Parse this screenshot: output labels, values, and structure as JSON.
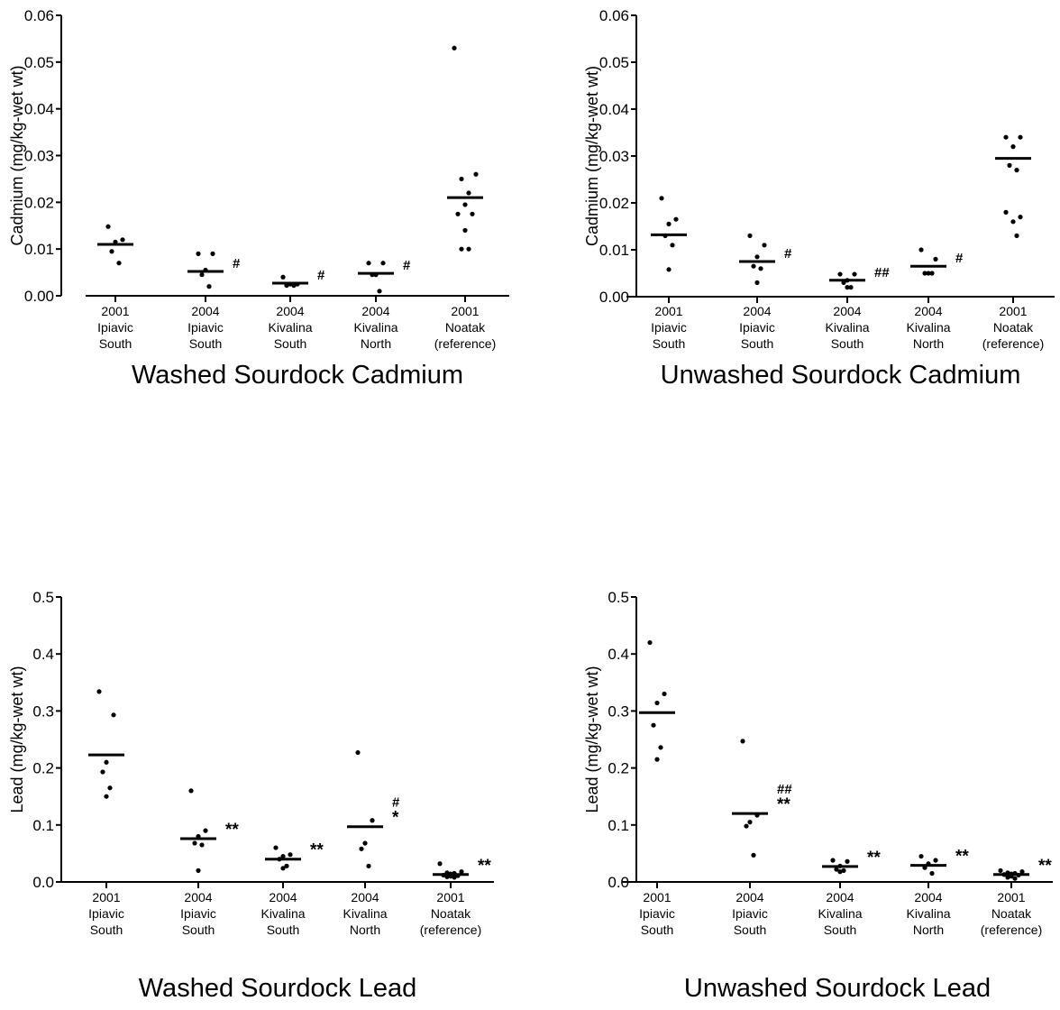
{
  "chart_data": [
    {
      "type": "scatter",
      "title": "Washed Sourdock Cadmium",
      "ylabel": "Cadmium (mg/kg-wet wt)",
      "ylim": [
        0,
        0.06
      ],
      "yticks": [
        "0.00",
        "0.01",
        "0.02",
        "0.03",
        "0.04",
        "0.05",
        "0.06"
      ],
      "categories": [
        [
          "2001",
          "Ipiavic",
          "South"
        ],
        [
          "2004",
          "Ipiavic",
          "South"
        ],
        [
          "2004",
          "Kivalina",
          "South"
        ],
        [
          "2004",
          "Kivalina",
          "North"
        ],
        [
          "2001",
          "Noatak",
          "(reference)"
        ]
      ],
      "groups": [
        {
          "mean": 0.011,
          "points": [
            0.0148,
            0.012,
            0.0115,
            0.0095,
            0.007
          ],
          "annotation": []
        },
        {
          "mean": 0.0052,
          "points": [
            0.009,
            0.009,
            0.0055,
            0.0045,
            0.002
          ],
          "annotation": [
            "#"
          ]
        },
        {
          "mean": 0.0027,
          "points": [
            0.004,
            0.0025,
            0.0025,
            0.0022,
            0.0022
          ],
          "annotation": [
            "#"
          ]
        },
        {
          "mean": 0.0048,
          "points": [
            0.007,
            0.007,
            0.0045,
            0.0045,
            0.001
          ],
          "annotation": [
            "#"
          ]
        },
        {
          "mean": 0.021,
          "points": [
            0.053,
            0.026,
            0.025,
            0.022,
            0.0195,
            0.0175,
            0.0175,
            0.014,
            0.01,
            0.01
          ],
          "annotation": []
        }
      ]
    },
    {
      "type": "scatter",
      "title": "Unwashed Sourdock Cadmium",
      "ylabel": "Cadmium (mg/kg-wet wt)",
      "ylim": [
        0,
        0.06
      ],
      "yticks": [
        "0.00",
        "0.01",
        "0.02",
        "0.03",
        "0.04",
        "0.05",
        "0.06"
      ],
      "categories": [
        [
          "2001",
          "Ipiavic",
          "South"
        ],
        [
          "2004",
          "Ipiavic",
          "South"
        ],
        [
          "2004",
          "Kivalina",
          "South"
        ],
        [
          "2004",
          "Kivalina",
          "North"
        ],
        [
          "2001",
          "Noatak",
          "(reference)"
        ]
      ],
      "groups": [
        {
          "mean": 0.0132,
          "points": [
            0.021,
            0.0165,
            0.0155,
            0.013,
            0.011,
            0.0058
          ],
          "annotation": []
        },
        {
          "mean": 0.0075,
          "points": [
            0.013,
            0.011,
            0.0085,
            0.0065,
            0.006,
            0.003
          ],
          "annotation": [
            "#"
          ]
        },
        {
          "mean": 0.0035,
          "points": [
            0.0048,
            0.0048,
            0.0035,
            0.003,
            0.002,
            0.002
          ],
          "annotation": [
            "##"
          ]
        },
        {
          "mean": 0.0065,
          "points": [
            0.01,
            0.008,
            0.005,
            0.005,
            0.005
          ],
          "annotation": [
            "#"
          ]
        },
        {
          "mean": 0.0295,
          "points": [
            0.034,
            0.034,
            0.032,
            0.028,
            0.027,
            0.018,
            0.017,
            0.016,
            0.013
          ],
          "annotation": []
        }
      ]
    },
    {
      "type": "scatter",
      "title": "Washed Sourdock Lead",
      "ylabel": "Lead (mg/kg-wet wt)",
      "ylim": [
        0,
        0.5
      ],
      "yticks": [
        "0.0",
        "0.1",
        "0.2",
        "0.3",
        "0.4",
        "0.5"
      ],
      "categories": [
        [
          "2001",
          "Ipiavic",
          "South"
        ],
        [
          "2004",
          "Ipiavic",
          "South"
        ],
        [
          "2004",
          "Kivalina",
          "South"
        ],
        [
          "2004",
          "Kivalina",
          "North"
        ],
        [
          "2001",
          "Noatak",
          "(reference)"
        ]
      ],
      "groups": [
        {
          "mean": 0.223,
          "points": [
            0.334,
            0.293,
            0.21,
            0.193,
            0.165,
            0.15
          ],
          "annotation": []
        },
        {
          "mean": 0.076,
          "points": [
            0.16,
            0.09,
            0.08,
            0.068,
            0.065,
            0.02
          ],
          "annotation": [
            "**"
          ]
        },
        {
          "mean": 0.04,
          "points": [
            0.06,
            0.048,
            0.045,
            0.04,
            0.028,
            0.024
          ],
          "annotation": [
            "**"
          ]
        },
        {
          "mean": 0.097,
          "points": [
            0.227,
            0.108,
            0.068,
            0.058,
            0.028
          ],
          "annotation": [
            "#",
            "*"
          ]
        },
        {
          "mean": 0.013,
          "points": [
            0.032,
            0.018,
            0.016,
            0.015,
            0.014,
            0.012,
            0.011,
            0.01,
            0.009,
            0.008
          ],
          "annotation": [
            "**"
          ]
        }
      ]
    },
    {
      "type": "scatter",
      "title": "Unwashed Sourdock Lead",
      "ylabel": "Lead (mg/kg-wet wt)",
      "ylim": [
        0,
        0.5
      ],
      "yticks": [
        "0.0",
        "0.1",
        "0.2",
        "0.3",
        "0.4",
        "0.5"
      ],
      "categories": [
        [
          "2001",
          "Ipiavic",
          "South"
        ],
        [
          "2004",
          "Ipiavic",
          "South"
        ],
        [
          "2004",
          "Kivalina",
          "South"
        ],
        [
          "2004",
          "Kivalina",
          "North"
        ],
        [
          "2001",
          "Noatak",
          "(reference)"
        ]
      ],
      "groups": [
        {
          "mean": 0.297,
          "points": [
            0.42,
            0.33,
            0.314,
            0.275,
            0.236,
            0.215
          ],
          "annotation": []
        },
        {
          "mean": 0.12,
          "points": [
            0.247,
            0.117,
            0.105,
            0.098,
            0.047
          ],
          "annotation": [
            "##",
            "**"
          ]
        },
        {
          "mean": 0.027,
          "points": [
            0.038,
            0.036,
            0.028,
            0.022,
            0.02,
            0.018
          ],
          "annotation": [
            "**"
          ]
        },
        {
          "mean": 0.029,
          "points": [
            0.045,
            0.038,
            0.032,
            0.025,
            0.015
          ],
          "annotation": [
            "**"
          ]
        },
        {
          "mean": 0.013,
          "points": [
            0.02,
            0.018,
            0.016,
            0.015,
            0.014,
            0.013,
            0.012,
            0.01,
            0.008,
            0.006
          ],
          "annotation": [
            "**"
          ]
        }
      ]
    }
  ]
}
